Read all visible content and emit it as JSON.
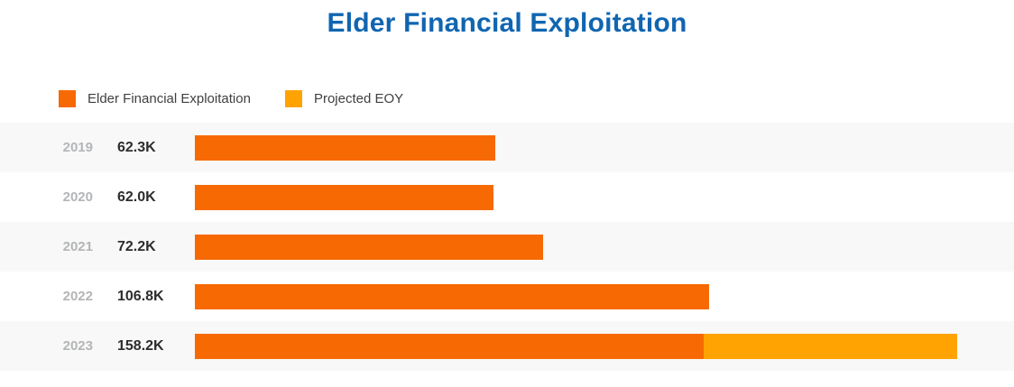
{
  "title": "Elder Financial Exploitation",
  "colors": {
    "title": "#1065b1",
    "bar": "#f76902",
    "projected": "#ffa302",
    "row_stripe": "#f8f8f8",
    "year_label": "#b3b5b7",
    "value_label": "#2d2d2d",
    "legend_text": "#404040"
  },
  "legend": [
    {
      "label": "Elder Financial Exploitation",
      "color_key": "bar"
    },
    {
      "label": "Projected EOY",
      "color_key": "projected"
    }
  ],
  "chart_data": {
    "type": "bar",
    "orientation": "horizontal",
    "title": "Elder Financial Exploitation",
    "categories": [
      "2019",
      "2020",
      "2021",
      "2022",
      "2023"
    ],
    "series": [
      {
        "name": "Elder Financial Exploitation",
        "values": [
          62300,
          62000,
          72200,
          106800,
          105600
        ]
      },
      {
        "name": "Projected EOY",
        "values": [
          0,
          0,
          0,
          0,
          52600
        ]
      }
    ],
    "totals": [
      62300,
      62000,
      72200,
      106800,
      158200
    ],
    "value_labels": [
      "62.3K",
      "62.0K",
      "72.2K",
      "106.8K",
      "158.2K"
    ],
    "xlim": [
      0,
      170000
    ],
    "grid": false,
    "legend_position": "top-left",
    "striped_rows": true
  }
}
